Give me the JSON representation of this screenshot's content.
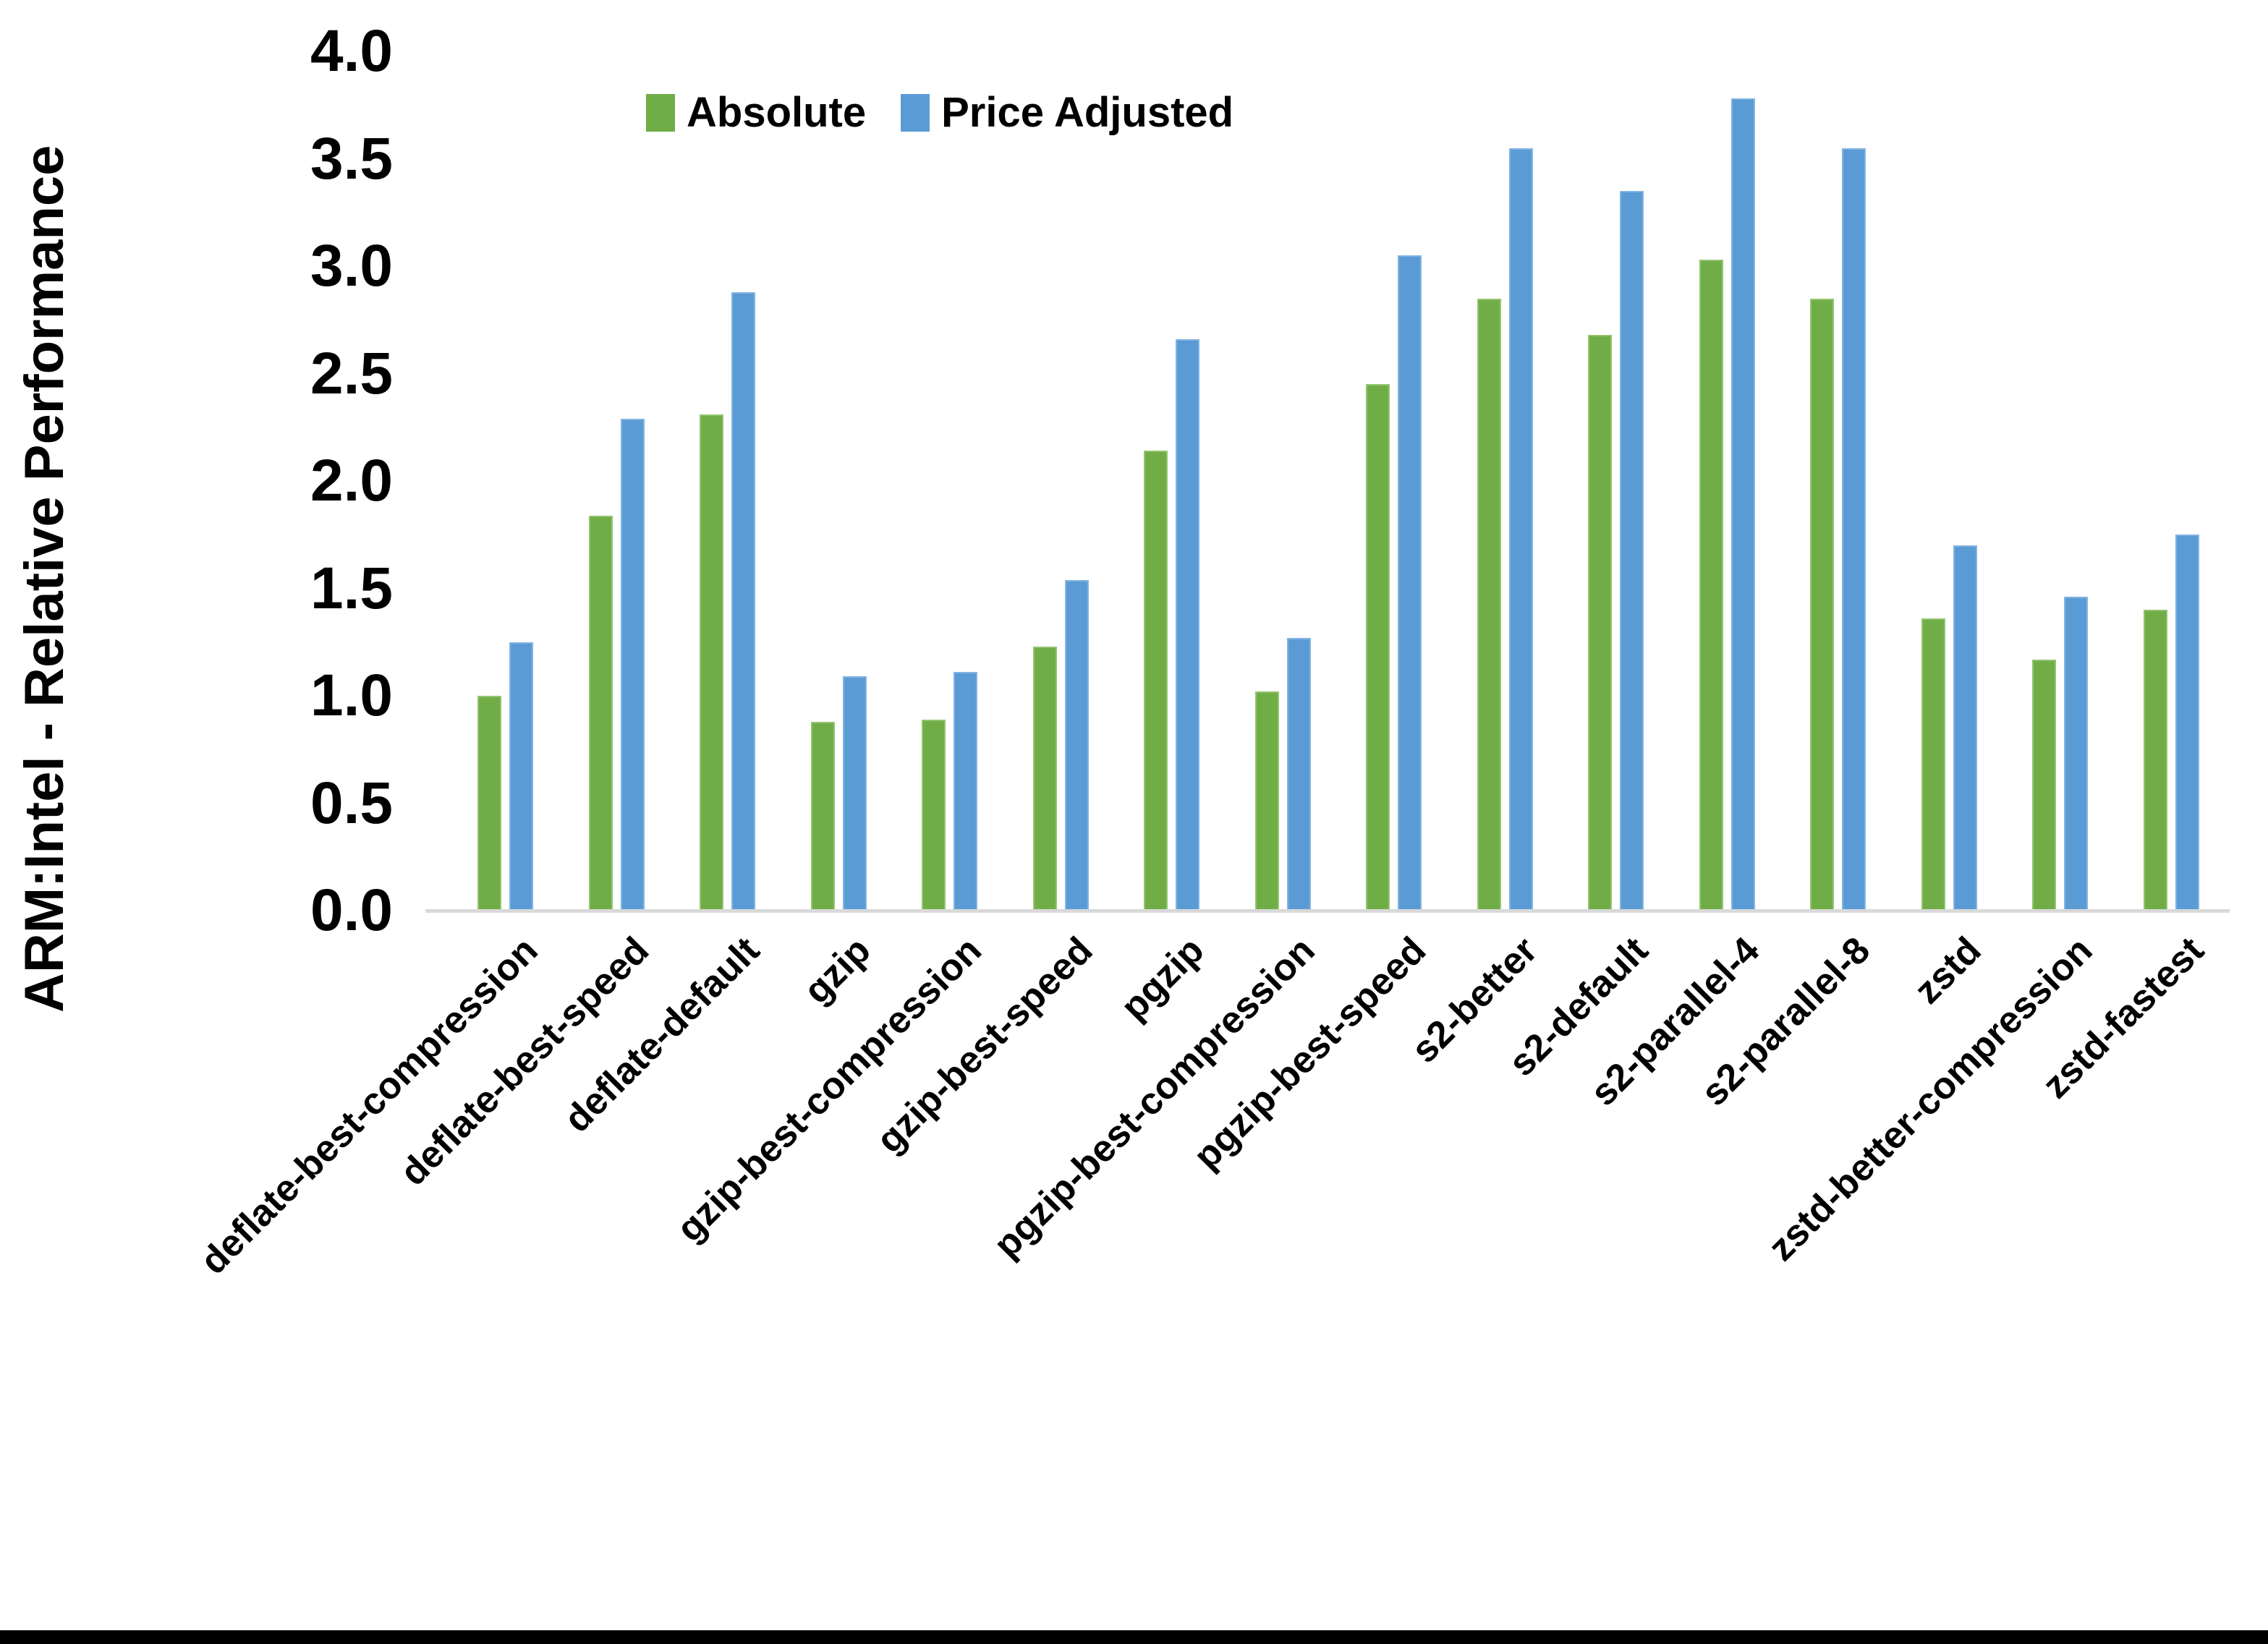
{
  "chart_data": {
    "type": "bar",
    "title": "",
    "ylabel": "ARM:Intel - Relative Performance",
    "xlabel": "",
    "ylim": [
      0.0,
      4.0
    ],
    "ytick_step": 0.5,
    "ytick_labels": [
      "0.0",
      "0.5",
      "1.0",
      "1.5",
      "2.0",
      "2.5",
      "3.0",
      "3.5",
      "4.0"
    ],
    "grid": false,
    "legend_position": "top",
    "categories": [
      "deflate-best-compression",
      "deflate-best-speed",
      "deflate-default",
      "gzip",
      "gzip-best-compression",
      "gzip-best-speed",
      "pgzip",
      "pgzip-best-compression",
      "pgzip-best-speed",
      "s2-better",
      "s2-default",
      "s2-parallel-4",
      "s2-parallel-8",
      "zstd",
      "zstd-better-compression",
      "zstd-fastest"
    ],
    "series": [
      {
        "name": "Absolute",
        "color": "#70AD47",
        "values": [
          1.0,
          1.84,
          2.31,
          0.88,
          0.89,
          1.23,
          2.14,
          1.02,
          2.45,
          2.85,
          2.68,
          3.03,
          2.85,
          1.36,
          1.17,
          1.4
        ]
      },
      {
        "name": "Price Adjusted",
        "color": "#5B9BD5",
        "values": [
          1.25,
          2.29,
          2.88,
          1.09,
          1.11,
          1.54,
          2.66,
          1.27,
          3.05,
          3.55,
          3.35,
          3.78,
          3.55,
          1.7,
          1.46,
          1.75
        ]
      }
    ],
    "axis_line_color": "#D9D9D9"
  }
}
